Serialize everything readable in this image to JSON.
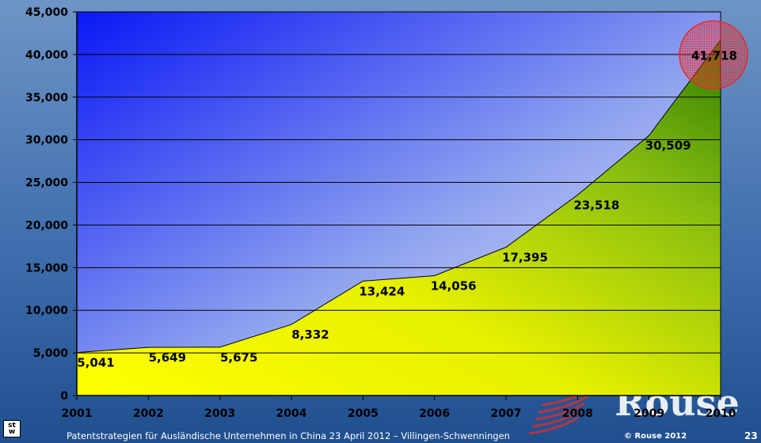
{
  "chart_data": {
    "type": "area",
    "title": "",
    "xlabel": "",
    "ylabel": "",
    "x": [
      "2001",
      "2002",
      "2003",
      "2004",
      "2005",
      "2006",
      "2007",
      "2008",
      "2009",
      "2010"
    ],
    "values": [
      5041,
      5649,
      5675,
      8332,
      13424,
      14056,
      17395,
      23518,
      30509,
      41718
    ],
    "data_labels": [
      "5,041",
      "5,649",
      "5,675",
      "8,332",
      "13,424",
      "14,056",
      "17,395",
      "23,518",
      "30,509",
      "41,718"
    ],
    "ylim": [
      0,
      45000
    ],
    "yticks": [
      0,
      5000,
      10000,
      15000,
      20000,
      25000,
      30000,
      35000,
      40000,
      45000
    ],
    "ytick_labels": [
      "0",
      "5,000",
      "10,000",
      "15,000",
      "20,000",
      "25,000",
      "30,000",
      "35,000",
      "40,000",
      "45,000"
    ],
    "grid": true,
    "highlight": {
      "category": "2010",
      "color": "#e03030"
    }
  },
  "footer": {
    "caption": "Patentstrategien für Ausländische Unternehmen in China 23 April 2012 – Villingen-Schwenningen",
    "copyright": "© Rouse 2012",
    "page_number": "23",
    "logo_text": "Rouse",
    "badge_top": "st",
    "badge_bottom": "w"
  },
  "colors": {
    "plot_top": "#0a18f5",
    "plot_bottom": "#e6ecf8",
    "area_low": "#ffff00",
    "area_high": "#3a8a00",
    "gridline": "#000000"
  }
}
